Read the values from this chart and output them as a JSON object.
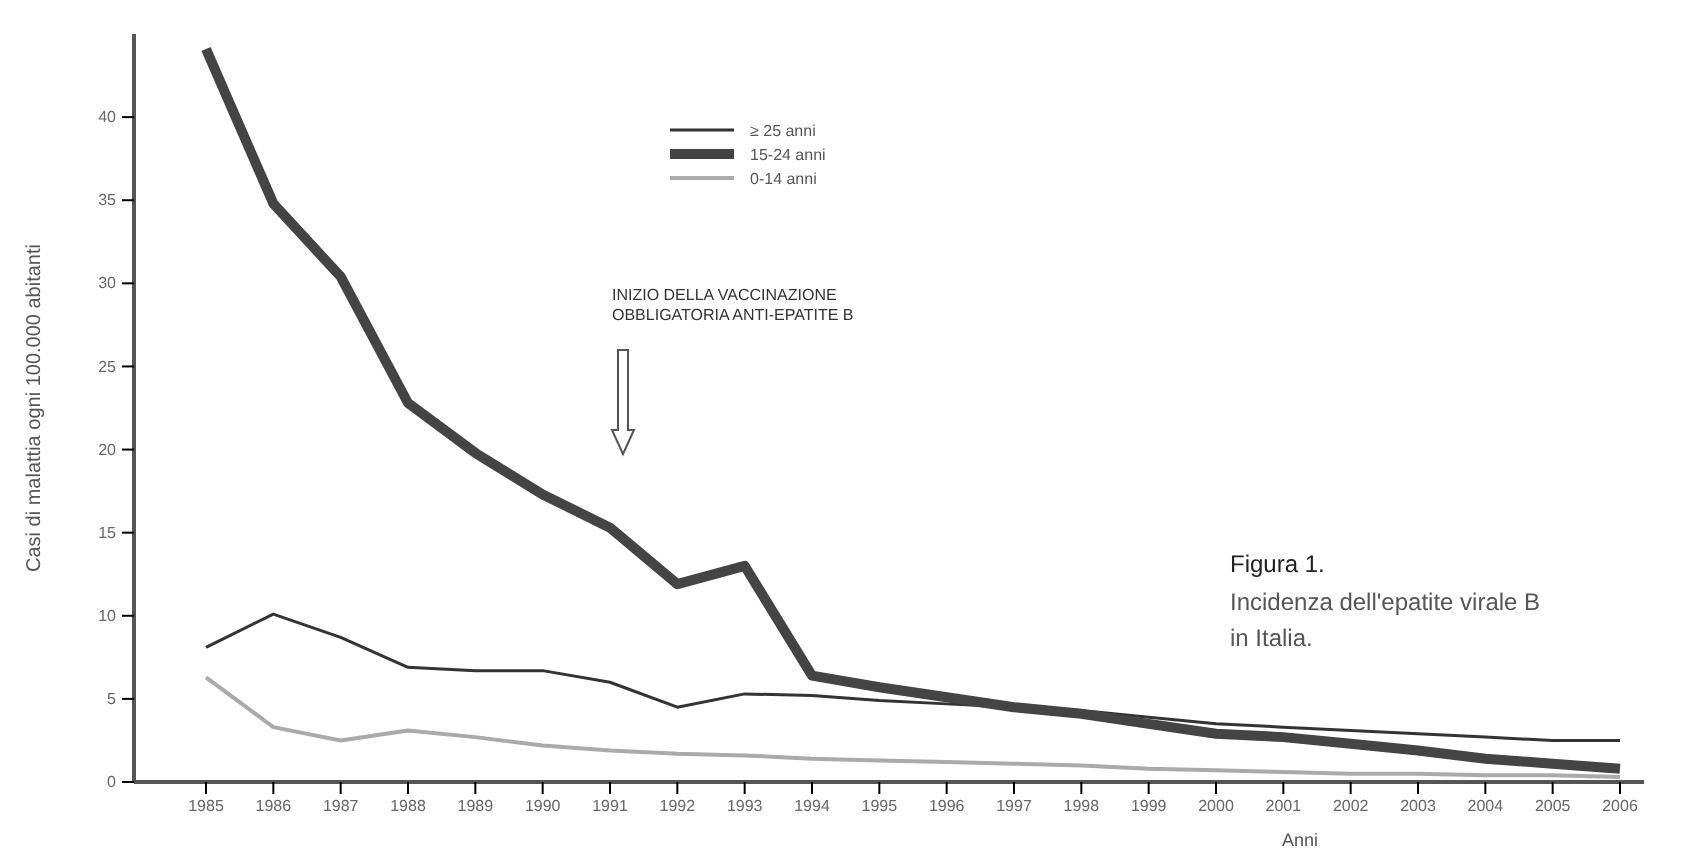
{
  "chart_data": {
    "type": "line",
    "title": "Figura 1.",
    "subtitle": "Incidenza dell'epatite virale B in Italia.",
    "xlabel": "Anni",
    "ylabel": "Casi di malattia ogni 100.000 abitanti",
    "categories": [
      "1985",
      "1986",
      "1987",
      "1988",
      "1989",
      "1990",
      "1991",
      "1992",
      "1993",
      "1994",
      "1995",
      "1996",
      "1997",
      "1998",
      "1999",
      "2000",
      "2001",
      "2002",
      "2003",
      "2004",
      "2005",
      "2006"
    ],
    "series": [
      {
        "name": "≥ 25 anni",
        "color": "#333333",
        "values": [
          8.1,
          10.1,
          8.7,
          6.9,
          6.7,
          6.7,
          6.0,
          4.5,
          5.3,
          5.2,
          4.9,
          4.7,
          4.5,
          4.3,
          3.9,
          3.5,
          3.3,
          3.1,
          2.9,
          2.7,
          2.5,
          2.5
        ]
      },
      {
        "name": "15-24 anni",
        "color": "#444444",
        "values": [
          44.1,
          34.8,
          30.4,
          22.8,
          19.8,
          17.3,
          15.3,
          11.9,
          13.0,
          6.4,
          5.7,
          5.1,
          4.5,
          4.1,
          3.5,
          2.9,
          2.7,
          2.3,
          1.9,
          1.4,
          1.1,
          0.8
        ]
      },
      {
        "name": "0-14 anni",
        "color": "#aaaaaa",
        "values": [
          6.3,
          3.3,
          2.5,
          3.1,
          2.7,
          2.2,
          1.9,
          1.7,
          1.6,
          1.4,
          1.3,
          1.2,
          1.1,
          1.0,
          0.8,
          0.7,
          0.6,
          0.5,
          0.5,
          0.4,
          0.4,
          0.3
        ]
      }
    ],
    "ylim": [
      0,
      45
    ],
    "yticks": [
      0,
      5,
      10,
      15,
      20,
      25,
      30,
      35,
      40
    ],
    "grid": false,
    "legend": "top",
    "marker": "none",
    "line_style": "solid",
    "annotations": [
      "INIZIO DELLA VACCINAZIONE\nOBBLIGATORIA ANTI-EPATITE B"
    ]
  }
}
